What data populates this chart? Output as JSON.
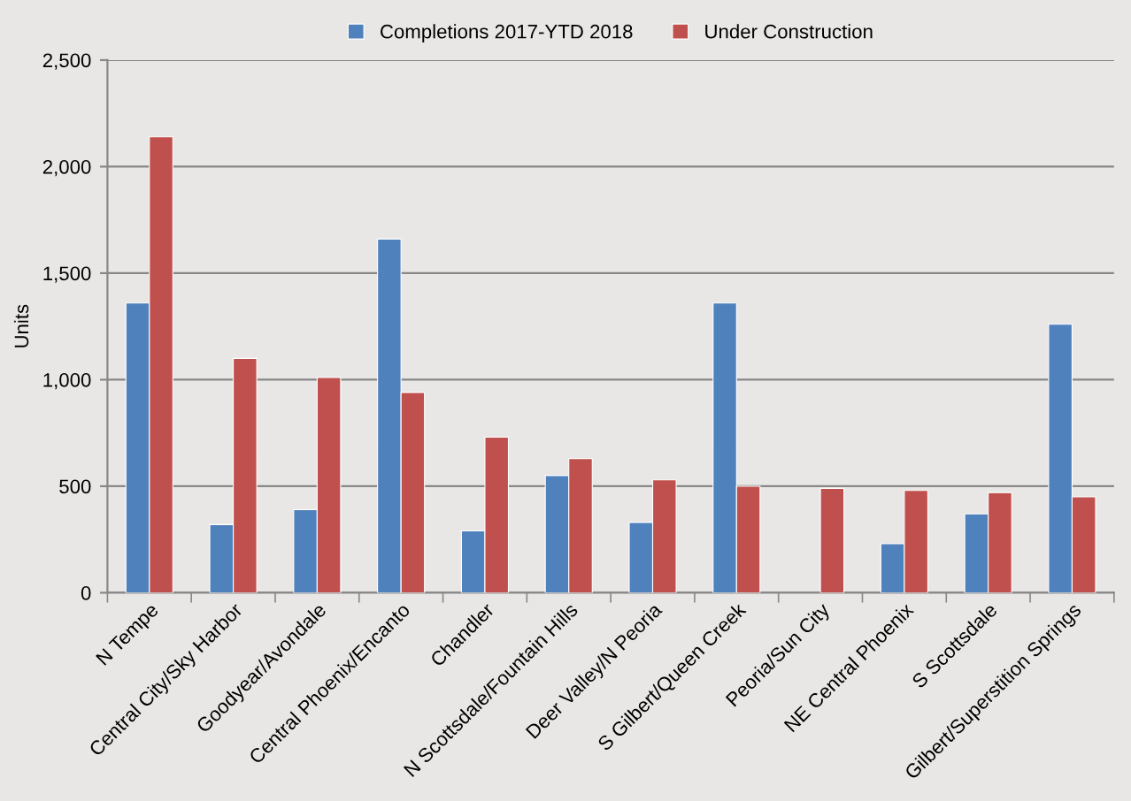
{
  "chart_data": {
    "type": "bar",
    "ylabel": "Units",
    "categories": [
      "N Tempe",
      "Central City/Sky Harbor",
      "Goodyear/Avondale",
      "Central Phoenix/Encanto",
      "Chandler",
      "N Scottsdale/Fountain Hills",
      "Deer Valley/N Peoria",
      "S Gilbert/Queen Creek",
      "Peoria/Sun City",
      "NE Central Phoenix",
      "S Scottsdale",
      "Gilbert/Superstition Springs"
    ],
    "series": [
      {
        "name": "Completions 2017-YTD 2018",
        "color": "#4f81bd",
        "values": [
          1360,
          320,
          390,
          1660,
          290,
          550,
          330,
          1360,
          null,
          230,
          370,
          1260
        ]
      },
      {
        "name": "Under Construction",
        "color": "#c0504d",
        "values": [
          2140,
          1100,
          1010,
          940,
          730,
          630,
          530,
          500,
          490,
          480,
          470,
          450
        ]
      }
    ],
    "ylim": [
      0,
      2500
    ],
    "yticks": [
      0,
      {
        "value": 500,
        "label": "500"
      },
      {
        "value": 1000,
        "label": "1,000"
      },
      {
        "value": 1500,
        "label": "1,500"
      },
      {
        "value": 2000,
        "label": "2,000"
      },
      {
        "value": 2500,
        "label": "2,500"
      }
    ],
    "grid": "y",
    "legend": "top"
  }
}
